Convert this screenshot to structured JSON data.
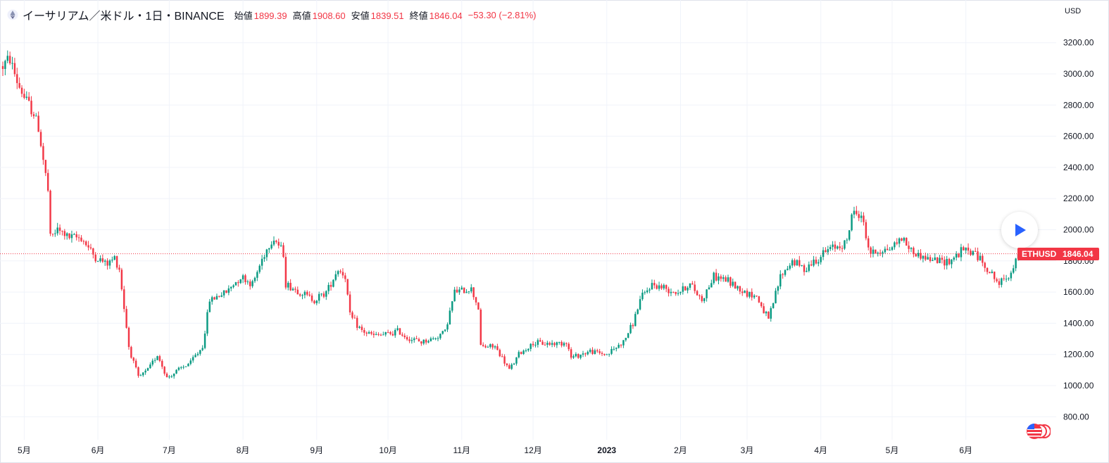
{
  "legend": {
    "symbol": "イーサリアム／米ドル・1日・BINANCE",
    "open_label": "始値",
    "open": "1899.39",
    "high_label": "高値",
    "high": "1908.60",
    "low_label": "安値",
    "low": "1839.51",
    "close_label": "終値",
    "close": "1846.04",
    "change": "−53.30 (−2.81%)"
  },
  "currency": "USD",
  "price_tag": {
    "ticker": "ETHUSD",
    "price": "1846.04"
  },
  "colors": {
    "up": "#089981",
    "down": "#f23645",
    "grid": "#f0f3fa",
    "text": "#131722",
    "accent": "#2962ff"
  },
  "chart_data": {
    "type": "candlestick",
    "interval": "1D",
    "x_range": [
      "2022-04-22",
      "2023-06-23"
    ],
    "ylim": [
      700,
      3300
    ],
    "grid": true,
    "last_price": 1846.04,
    "y_ticks": [
      800,
      1000,
      1200,
      1400,
      1600,
      1800,
      2000,
      2200,
      2400,
      2600,
      2800,
      3000,
      3200
    ],
    "y_tick_labels": [
      "800.00",
      "1000.00",
      "1200.00",
      "1400.00",
      "1600.00",
      "1800.00",
      "2000.00",
      "2200.00",
      "2400.00",
      "2600.00",
      "2800.00",
      "3000.00",
      "3200.00"
    ],
    "x_ticks": [
      {
        "date": "2022-05-01",
        "label": "5月"
      },
      {
        "date": "2022-06-01",
        "label": "6月"
      },
      {
        "date": "2022-07-01",
        "label": "7月"
      },
      {
        "date": "2022-08-01",
        "label": "8月"
      },
      {
        "date": "2022-09-01",
        "label": "9月"
      },
      {
        "date": "2022-10-01",
        "label": "10月"
      },
      {
        "date": "2022-11-01",
        "label": "11月"
      },
      {
        "date": "2022-12-01",
        "label": "12月"
      },
      {
        "date": "2023-01-01",
        "label": "2023"
      },
      {
        "date": "2023-02-01",
        "label": "2月"
      },
      {
        "date": "2023-03-01",
        "label": "3月"
      },
      {
        "date": "2023-04-01",
        "label": "4月"
      },
      {
        "date": "2023-05-01",
        "label": "5月"
      },
      {
        "date": "2023-06-01",
        "label": "6月"
      }
    ],
    "close_path": [
      [
        "2022-04-22",
        3050
      ],
      [
        "2022-04-25",
        3100
      ],
      [
        "2022-04-28",
        2950
      ],
      [
        "2022-05-01",
        2850
      ],
      [
        "2022-05-05",
        2750
      ],
      [
        "2022-05-07",
        2650
      ],
      [
        "2022-05-09",
        2450
      ],
      [
        "2022-05-11",
        2250
      ],
      [
        "2022-05-12",
        1950
      ],
      [
        "2022-05-15",
        2000
      ],
      [
        "2022-05-20",
        1950
      ],
      [
        "2022-05-25",
        1950
      ],
      [
        "2022-05-31",
        1820
      ],
      [
        "2022-06-05",
        1780
      ],
      [
        "2022-06-08",
        1820
      ],
      [
        "2022-06-10",
        1750
      ],
      [
        "2022-06-12",
        1500
      ],
      [
        "2022-06-14",
        1250
      ],
      [
        "2022-06-18",
        1050
      ],
      [
        "2022-06-22",
        1100
      ],
      [
        "2022-06-26",
        1200
      ],
      [
        "2022-06-30",
        1050
      ],
      [
        "2022-07-05",
        1100
      ],
      [
        "2022-07-10",
        1150
      ],
      [
        "2022-07-15",
        1250
      ],
      [
        "2022-07-18",
        1550
      ],
      [
        "2022-07-25",
        1600
      ],
      [
        "2022-07-31",
        1700
      ],
      [
        "2022-08-05",
        1650
      ],
      [
        "2022-08-10",
        1850
      ],
      [
        "2022-08-14",
        1950
      ],
      [
        "2022-08-18",
        1850
      ],
      [
        "2022-08-19",
        1650
      ],
      [
        "2022-08-25",
        1600
      ],
      [
        "2022-08-31",
        1550
      ],
      [
        "2022-09-05",
        1600
      ],
      [
        "2022-09-10",
        1750
      ],
      [
        "2022-09-13",
        1700
      ],
      [
        "2022-09-15",
        1450
      ],
      [
        "2022-09-20",
        1350
      ],
      [
        "2022-09-25",
        1320
      ],
      [
        "2022-10-01",
        1330
      ],
      [
        "2022-10-05",
        1350
      ],
      [
        "2022-10-10",
        1300
      ],
      [
        "2022-10-15",
        1280
      ],
      [
        "2022-10-20",
        1300
      ],
      [
        "2022-10-25",
        1350
      ],
      [
        "2022-10-29",
        1600
      ],
      [
        "2022-11-05",
        1620
      ],
      [
        "2022-11-08",
        1500
      ],
      [
        "2022-11-09",
        1250
      ],
      [
        "2022-11-15",
        1250
      ],
      [
        "2022-11-21",
        1100
      ],
      [
        "2022-11-25",
        1200
      ],
      [
        "2022-12-01",
        1270
      ],
      [
        "2022-12-10",
        1270
      ],
      [
        "2022-12-15",
        1280
      ],
      [
        "2022-12-17",
        1180
      ],
      [
        "2022-12-25",
        1220
      ],
      [
        "2023-01-01",
        1200
      ],
      [
        "2023-01-08",
        1280
      ],
      [
        "2023-01-12",
        1400
      ],
      [
        "2023-01-15",
        1550
      ],
      [
        "2023-01-20",
        1650
      ],
      [
        "2023-01-31",
        1600
      ],
      [
        "2023-02-05",
        1650
      ],
      [
        "2023-02-10",
        1550
      ],
      [
        "2023-02-15",
        1700
      ],
      [
        "2023-02-20",
        1680
      ],
      [
        "2023-02-28",
        1600
      ],
      [
        "2023-03-05",
        1570
      ],
      [
        "2023-03-10",
        1420
      ],
      [
        "2023-03-15",
        1700
      ],
      [
        "2023-03-20",
        1800
      ],
      [
        "2023-03-25",
        1750
      ],
      [
        "2023-03-31",
        1820
      ],
      [
        "2023-04-05",
        1880
      ],
      [
        "2023-04-12",
        1920
      ],
      [
        "2023-04-14",
        2100
      ],
      [
        "2023-04-18",
        2100
      ],
      [
        "2023-04-20",
        1950
      ],
      [
        "2023-04-22",
        1850
      ],
      [
        "2023-04-30",
        1880
      ],
      [
        "2023-05-05",
        1950
      ],
      [
        "2023-05-10",
        1850
      ],
      [
        "2023-05-15",
        1820
      ],
      [
        "2023-05-20",
        1800
      ],
      [
        "2023-05-25",
        1800
      ],
      [
        "2023-05-31",
        1870
      ],
      [
        "2023-06-05",
        1850
      ],
      [
        "2023-06-10",
        1750
      ],
      [
        "2023-06-15",
        1650
      ],
      [
        "2023-06-20",
        1730
      ],
      [
        "2023-06-23",
        1846
      ]
    ]
  }
}
